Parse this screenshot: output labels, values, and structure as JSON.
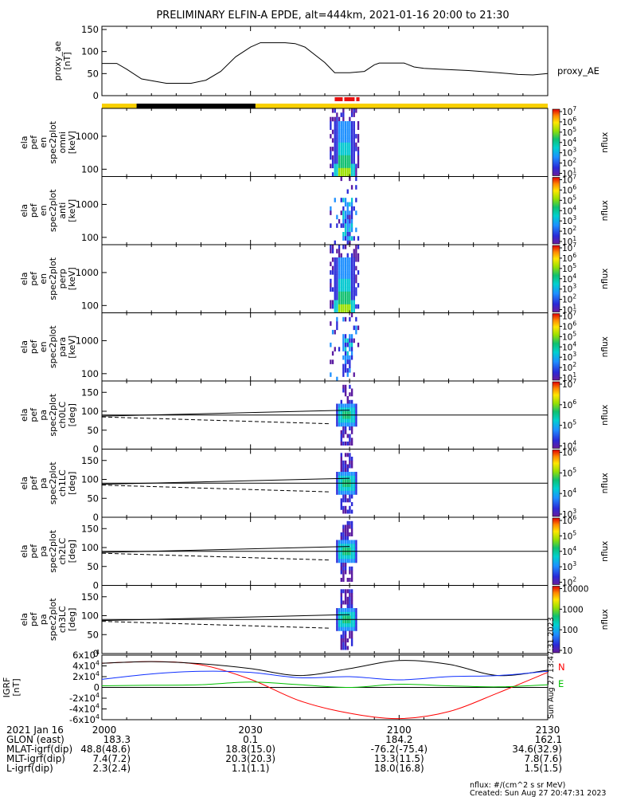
{
  "title": "PRELIMINARY ELFIN-A EPDE, alt=444km, 2021-01-16 20:00 to 21:30",
  "colors": {
    "sunlight_bar": "#f8d000",
    "eclipse_bar": "#000000",
    "science_zone": "#e81010",
    "igrf_n": "#ff0000",
    "igrf_x": "#000000",
    "igrf_y": "#1030ff",
    "igrf_z": "#00c000"
  },
  "orbit_bar": {
    "segments": [
      {
        "start": "20:00",
        "end": "20:07",
        "state": "sunlight"
      },
      {
        "start": "20:07",
        "end": "20:31",
        "state": "eclipse"
      },
      {
        "start": "20:31",
        "end": "21:30",
        "state": "sunlight"
      }
    ],
    "science_zone": {
      "start": "20:47",
      "end": "20:52"
    }
  },
  "chart_data": [
    {
      "type": "line",
      "panel": "proxy_ae",
      "ylabel_lines": [
        "proxy_ae",
        "[nT]"
      ],
      "legend": "proxy_AE",
      "yticks": [
        "0",
        "50",
        "100",
        "150"
      ],
      "ylim": [
        0,
        150
      ],
      "x": [
        "20:00",
        "20:03",
        "20:05",
        "20:08",
        "20:13",
        "20:18",
        "20:21",
        "20:24",
        "20:27",
        "20:30",
        "20:32",
        "20:35",
        "20:37",
        "20:39",
        "20:41",
        "20:45",
        "20:47",
        "20:50",
        "20:53",
        "20:55",
        "20:56",
        "20:59",
        "21:01",
        "21:03",
        "21:05",
        "21:08",
        "21:14",
        "21:20",
        "21:24",
        "21:27",
        "21:30"
      ],
      "values": [
        73,
        73,
        60,
        38,
        28,
        28,
        35,
        55,
        88,
        110,
        120,
        120,
        120,
        118,
        110,
        75,
        52,
        52,
        55,
        70,
        74,
        74,
        74,
        65,
        62,
        60,
        57,
        52,
        48,
        47,
        50
      ]
    },
    {
      "type": "heatmap",
      "panel": "ela_pef_en_spec2plot_omni",
      "ylabel_lines": [
        "ela",
        "pef",
        "en",
        "spec2plot",
        "omni",
        "[keV]"
      ],
      "yscale": "log",
      "yticks": [
        "100",
        "1000"
      ],
      "ylim_kev": [
        60,
        7000
      ],
      "time_range": [
        "20:46",
        "20:52"
      ],
      "colorbar": {
        "label": "nflux",
        "scale": "log",
        "ticks": [
          "10^1",
          "10^2",
          "10^3",
          "10^4",
          "10^5",
          "10^6",
          "10^7"
        ]
      }
    },
    {
      "type": "heatmap",
      "panel": "ela_pef_en_spec2plot_anti",
      "ylabel_lines": [
        "ela",
        "pef",
        "en",
        "spec2plot",
        "anti",
        "[keV]"
      ],
      "yscale": "log",
      "yticks": [
        "100",
        "1000"
      ],
      "ylim_kev": [
        60,
        7000
      ],
      "time_range": [
        "20:46",
        "20:52"
      ],
      "colorbar": {
        "label": "nflux",
        "scale": "log",
        "ticks": [
          "10^1",
          "10^2",
          "10^3",
          "10^4",
          "10^5",
          "10^6",
          "10^7"
        ]
      }
    },
    {
      "type": "heatmap",
      "panel": "ela_pef_en_spec2plot_perp",
      "ylabel_lines": [
        "ela",
        "pef",
        "en",
        "spec2plot",
        "perp",
        "[keV]"
      ],
      "yscale": "log",
      "yticks": [
        "100",
        "1000"
      ],
      "ylim_kev": [
        60,
        7000
      ],
      "time_range": [
        "20:46",
        "20:52"
      ],
      "colorbar": {
        "label": "nflux",
        "scale": "log",
        "ticks": [
          "10^1",
          "10^2",
          "10^3",
          "10^4",
          "10^5",
          "10^6",
          "10^7"
        ]
      }
    },
    {
      "type": "heatmap",
      "panel": "ela_pef_en_spec2plot_para",
      "ylabel_lines": [
        "ela",
        "pef",
        "en",
        "spec2plot",
        "para",
        "[keV]"
      ],
      "yscale": "log",
      "yticks": [
        "100",
        "1000"
      ],
      "ylim_kev": [
        60,
        7000
      ],
      "time_range": [
        "20:46",
        "20:52"
      ],
      "colorbar": {
        "label": "nflux",
        "scale": "log",
        "ticks": [
          "10^1",
          "10^2",
          "10^3",
          "10^4",
          "10^5",
          "10^6",
          "10^7"
        ]
      }
    },
    {
      "type": "heatmap",
      "panel": "ela_pef_pa_spec2plot_ch0LC",
      "ylabel_lines": [
        "ela",
        "pef",
        "pa",
        "spec2plot",
        "ch0LC",
        "[deg]"
      ],
      "yticks": [
        "0",
        "50",
        "100",
        "150"
      ],
      "ylim_deg": [
        0,
        180
      ],
      "time_range": [
        "20:46",
        "20:52"
      ],
      "colorbar": {
        "label": "nflux",
        "scale": "log",
        "ticks": [
          "10^4",
          "10^5",
          "10^6",
          "10^7"
        ]
      }
    },
    {
      "type": "heatmap",
      "panel": "ela_pef_pa_spec2plot_ch1LC",
      "ylabel_lines": [
        "ela",
        "pef",
        "pa",
        "spec2plot",
        "ch1LC",
        "[deg]"
      ],
      "yticks": [
        "0",
        "50",
        "100",
        "150"
      ],
      "ylim_deg": [
        0,
        180
      ],
      "time_range": [
        "20:46",
        "20:52"
      ],
      "colorbar": {
        "label": "nflux",
        "scale": "log",
        "ticks": [
          "10^3",
          "10^4",
          "10^5",
          "10^6"
        ]
      }
    },
    {
      "type": "heatmap",
      "panel": "ela_pef_pa_spec2plot_ch2LC",
      "ylabel_lines": [
        "ela",
        "pef",
        "pa",
        "spec2plot",
        "ch2LC",
        "[deg]"
      ],
      "yticks": [
        "0",
        "50",
        "100",
        "150"
      ],
      "ylim_deg": [
        0,
        180
      ],
      "time_range": [
        "20:46",
        "20:52"
      ],
      "colorbar": {
        "label": "nflux",
        "scale": "log",
        "ticks": [
          "10^2",
          "10^3",
          "10^4",
          "10^5",
          "10^6"
        ]
      }
    },
    {
      "type": "heatmap",
      "panel": "ela_pef_pa_spec2plot_ch3LC",
      "ylabel_lines": [
        "ela",
        "pef",
        "pa",
        "spec2plot",
        "ch3LC",
        "[deg]"
      ],
      "yticks": [
        "0",
        "50",
        "100",
        "150"
      ],
      "ylim_deg": [
        0,
        180
      ],
      "time_range": [
        "20:46",
        "20:52"
      ],
      "colorbar": {
        "label": "nflux",
        "scale": "log",
        "ticks": [
          "10",
          "100",
          "1000",
          "10000"
        ]
      }
    },
    {
      "type": "line",
      "panel": "igrf",
      "ylabel_lines": [
        "IGRF",
        "[nT]"
      ],
      "yticks": [
        "-6x10^4",
        "-4x10^4",
        "-2x10^4",
        "0",
        "2x10^4",
        "4x10^4",
        "6x10^4"
      ],
      "ylim": [
        -60000,
        60000
      ],
      "x": [
        "20:00",
        "20:10",
        "20:20",
        "20:30",
        "20:40",
        "20:50",
        "21:00",
        "21:10",
        "21:20",
        "21:30"
      ],
      "series": [
        {
          "name": "N",
          "color": "#ff0000",
          "values": [
            45000,
            48000,
            42000,
            15000,
            -25000,
            -48000,
            -58000,
            -45000,
            -10000,
            28000
          ]
        },
        {
          "name": "",
          "color": "#000000",
          "values": [
            45000,
            48000,
            44000,
            35000,
            22000,
            35000,
            50000,
            43000,
            22000,
            32000
          ]
        },
        {
          "name": "",
          "color": "#1030ff",
          "values": [
            15000,
            25000,
            30000,
            28000,
            18000,
            20000,
            14000,
            20000,
            22000,
            30000
          ]
        },
        {
          "name": "E",
          "color": "#00c000",
          "values": [
            3000,
            4000,
            5000,
            10000,
            5000,
            0,
            6000,
            3000,
            1000,
            5000
          ]
        }
      ]
    }
  ],
  "time_axis": {
    "tick_labels": [
      "2000",
      "2030",
      "2100",
      "2130"
    ],
    "tick_times": [
      "20:00",
      "20:30",
      "21:00",
      "21:30"
    ],
    "minor_every_min": 5,
    "rows": [
      {
        "label": "2021 Jan 16",
        "values": [
          "2000",
          "2030",
          "2100",
          "2130"
        ]
      },
      {
        "label": "GLON (east)",
        "values": [
          "183.3",
          "0.1",
          "184.2",
          "162.1"
        ]
      },
      {
        "label": "MLAT-igrf(dip)",
        "values": [
          "48.8(48.6)",
          "18.8(15.0)",
          "-76.2(-75.4)",
          "34.6(32.9)"
        ]
      },
      {
        "label": "MLT-igrf(dip)",
        "values": [
          "7.4(7.2)",
          "20.3(20.3)",
          "13.3(11.5)",
          "7.8(7.6)"
        ]
      },
      {
        "label": "L-igrf(dip)",
        "values": [
          "2.3(2.4)",
          "1.1(1.1)",
          "18.0(16.8)",
          "1.5(1.5)"
        ]
      }
    ]
  },
  "footer": {
    "units": "nflux: #/(cm^2 s sr MeV)",
    "created": "Created: Sun Aug 27 20:47:31 2023",
    "stamp": "Sun Aug 27 13:47:31 2023"
  }
}
